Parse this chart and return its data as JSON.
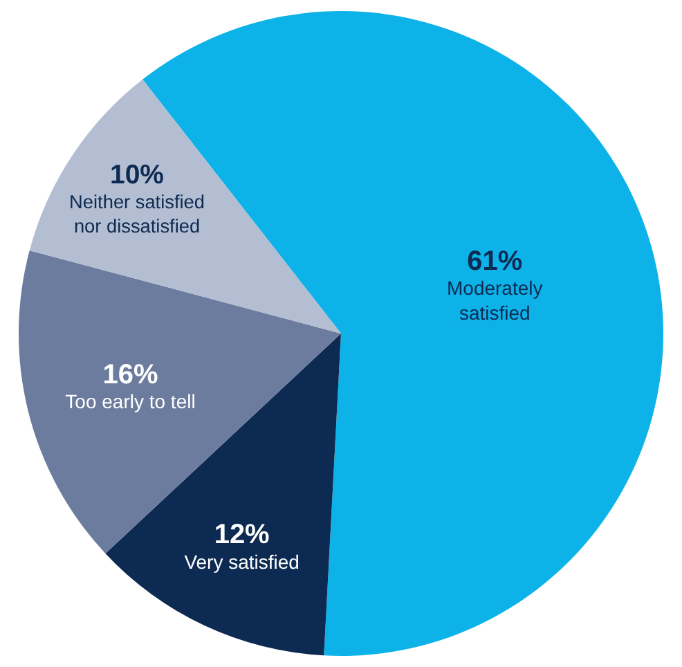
{
  "chart_data": {
    "type": "pie",
    "categories": [
      "Moderately satisfied",
      "Very satisfied",
      "Too early to tell",
      "Neither satisfied nor dissatisfied"
    ],
    "values": [
      61.4,
      12.2,
      16.1,
      10.3
    ],
    "value_labels": [
      "61%",
      "12%",
      "16%",
      "10%"
    ],
    "colors": [
      "#0db3e8",
      "#0d2a52",
      "#6c7c9e",
      "#b4bed2"
    ],
    "legend": false
  }
}
